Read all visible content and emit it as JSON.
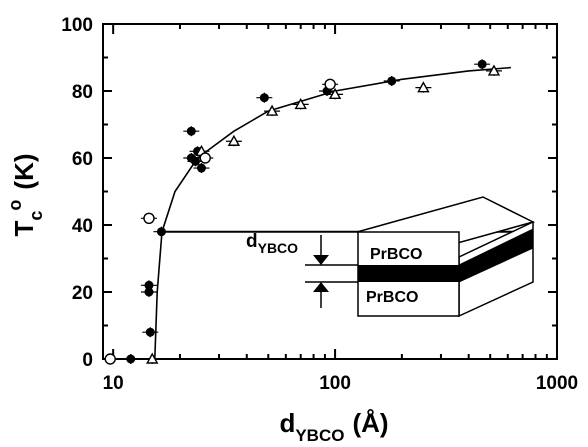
{
  "chart_data": {
    "type": "scatter",
    "xscale": "log",
    "xlim": [
      9,
      1000
    ],
    "ylim": [
      0,
      100
    ],
    "xticks": [
      10,
      100,
      1000
    ],
    "yticks": [
      0,
      20,
      40,
      60,
      80,
      100
    ],
    "xtick_labels": [
      "10",
      "100",
      "1000"
    ],
    "ytick_labels": [
      "0",
      "20",
      "40",
      "60",
      "80",
      "100"
    ],
    "xlabel": {
      "main": "d",
      "sub": "YBCO",
      "unit": "(Å)"
    },
    "ylabel": {
      "main": "T",
      "sub": "c",
      "sup": "o",
      "unit": "(K)"
    },
    "grid": false,
    "series": [
      {
        "marker": "filled-circle",
        "points": [
          {
            "x": 12,
            "y": 0
          },
          {
            "x": 14.5,
            "y": 22
          },
          {
            "x": 14.5,
            "y": 20
          },
          {
            "x": 14.7,
            "y": 8
          },
          {
            "x": 16.5,
            "y": 38
          },
          {
            "x": 22.5,
            "y": 68
          },
          {
            "x": 22.5,
            "y": 60
          },
          {
            "x": 23.5,
            "y": 59
          },
          {
            "x": 25,
            "y": 57
          },
          {
            "x": 24,
            "y": 62
          },
          {
            "x": 48,
            "y": 78
          },
          {
            "x": 92,
            "y": 80
          },
          {
            "x": 180,
            "y": 83
          },
          {
            "x": 460,
            "y": 88
          }
        ]
      },
      {
        "marker": "open-triangle",
        "points": [
          {
            "x": 15,
            "y": 0
          },
          {
            "x": 25,
            "y": 62
          },
          {
            "x": 35,
            "y": 65
          },
          {
            "x": 52,
            "y": 74
          },
          {
            "x": 70,
            "y": 76
          },
          {
            "x": 100,
            "y": 79
          },
          {
            "x": 250,
            "y": 81
          },
          {
            "x": 520,
            "y": 86
          }
        ]
      },
      {
        "marker": "open-circle",
        "points": [
          {
            "x": 9.7,
            "y": 0
          },
          {
            "x": 14.5,
            "y": 42
          },
          {
            "x": 26,
            "y": 60
          },
          {
            "x": 95,
            "y": 82
          }
        ]
      }
    ],
    "fit_curve": [
      {
        "x": 15.4,
        "y": 0
      },
      {
        "x": 15.8,
        "y": 20
      },
      {
        "x": 16.6,
        "y": 38
      },
      {
        "x": 19,
        "y": 50
      },
      {
        "x": 24,
        "y": 60
      },
      {
        "x": 35,
        "y": 68
      },
      {
        "x": 50,
        "y": 74
      },
      {
        "x": 100,
        "y": 80
      },
      {
        "x": 200,
        "y": 83.5
      },
      {
        "x": 400,
        "y": 86
      },
      {
        "x": 620,
        "y": 87
      }
    ],
    "reference_line_y": 38,
    "inset": {
      "layer_top": "PrBCO",
      "layer_bottom": "PrBCO",
      "dimension_label": {
        "main": "d",
        "sub": "YBCO"
      }
    }
  }
}
